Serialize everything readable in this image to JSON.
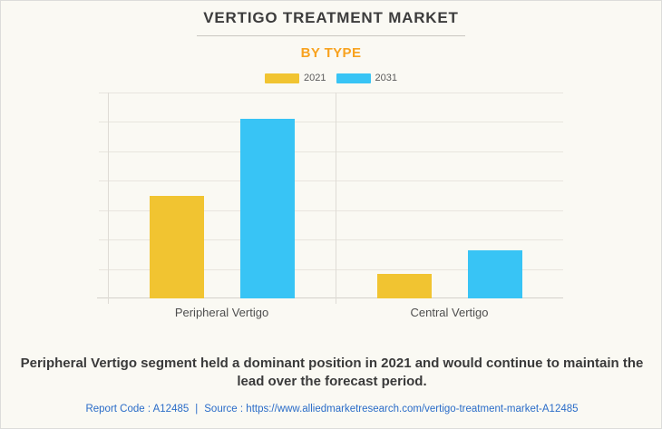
{
  "header": {
    "title": "VERTIGO TREATMENT MARKET",
    "subtitle": "BY TYPE"
  },
  "chart_data": {
    "type": "bar",
    "title": "VERTIGO TREATMENT MARKET",
    "subtitle": "BY TYPE",
    "categories": [
      "Peripheral Vertigo",
      "Central Vertigo"
    ],
    "series": [
      {
        "name": "2021",
        "color": "#F1C431",
        "values": [
          3.48,
          0.83
        ]
      },
      {
        "name": "2031",
        "color": "#38C4F5",
        "values": [
          6.11,
          1.63
        ]
      }
    ],
    "xlabel": "",
    "ylabel": "",
    "ylim": [
      0,
      7
    ],
    "gridline_intervals": 7,
    "y_axis_tick_labels": "none",
    "grid": "horizontal",
    "legend_position": "top-center",
    "note": "y-axis is unlabeled; values expressed in gridline units (1 unit = 1 horizontal gridline interval)"
  },
  "annotation": {
    "text": "Peripheral Vertigo segment held a dominant position in 2021 and would continue to maintain the lead over the forecast period."
  },
  "footer": {
    "report_code": "Report Code : A12485",
    "separator": "|",
    "source_label": "Source :",
    "source_url": "https://www.alliedmarketresearch.com/vertigo-treatment-market-A12485"
  },
  "colors": {
    "background": "#FAF9F3",
    "series_2021": "#F1C431",
    "series_2031": "#38C4F5",
    "subtitle_accent": "#F8A21E",
    "title_text": "#3C3C3C",
    "footer_link": "#2A6CC8"
  }
}
